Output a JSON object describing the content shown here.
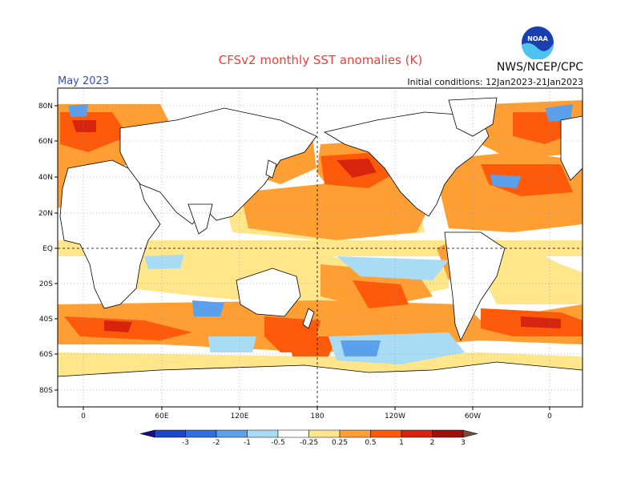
{
  "title": "CFSv2 monthly SST anomalies (K)",
  "source": "NWS/NCEP/CPC",
  "logo_text": "NOAA",
  "target_month": "May 2023",
  "initial_conditions": "Initial conditions: 12Jan2023-21Jan2023",
  "map": {
    "lat_labels": [
      "80N",
      "60N",
      "40N",
      "20N",
      "EQ",
      "20S",
      "40S",
      "60S",
      "80S"
    ],
    "lon_labels": [
      "0",
      "60E",
      "120E",
      "180",
      "120W",
      "60W",
      "0"
    ],
    "projection": "equirectangular",
    "center_longitude": "180",
    "grid": "dotted"
  },
  "legend": {
    "ticks": [
      "-3",
      "-2",
      "-1",
      "-0.5",
      "-0.25",
      "0.25",
      "0.5",
      "1",
      "2",
      "3"
    ],
    "colors": [
      "#1a0a8c",
      "#1c45c8",
      "#2f6fe0",
      "#5aa0ec",
      "#a8dcf4",
      "#ffffff",
      "#ffe68a",
      "#ff9e32",
      "#ff5a0a",
      "#d8240c",
      "#a0100a",
      "#7a4a3a"
    ]
  },
  "colors": {
    "land": "#ffffff",
    "coast": "#000000",
    "title": "#e8413a",
    "month": "#3050c0"
  }
}
